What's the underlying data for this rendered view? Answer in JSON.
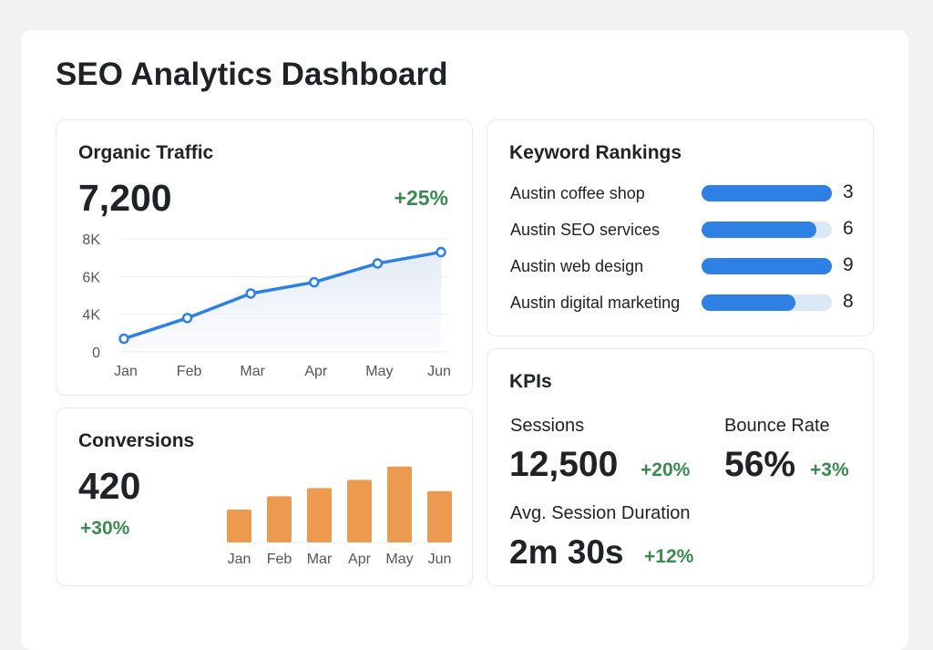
{
  "title": "SEO Analytics Dashboard",
  "organic": {
    "title": "Organic Traffic",
    "value": "7,200",
    "change": "+25%"
  },
  "conversions": {
    "title": "Conversions",
    "value": "420",
    "change": "+30%"
  },
  "keywords": {
    "title": "Keyword Rankings",
    "items": [
      {
        "label": "Austin coffee shop",
        "rank": "3",
        "fill": 1.0
      },
      {
        "label": "Austin SEO services",
        "rank": "6",
        "fill": 0.88
      },
      {
        "label": "Austin web design",
        "rank": "9",
        "fill": 1.0
      },
      {
        "label": "Austin digital marketing",
        "rank": "8",
        "fill": 0.72
      }
    ]
  },
  "kpis": {
    "title": "KPIs",
    "sessions": {
      "label": "Sessions",
      "value": "12,500",
      "change": "+20%"
    },
    "bounce": {
      "label": "Bounce Rate",
      "value": "56%",
      "change": "+3%"
    },
    "duration": {
      "label": "Avg. Session Duration",
      "value": "2m 30s",
      "change": "+12%"
    }
  },
  "colors": {
    "line": "#2f80e4",
    "bar": "#eb9a50",
    "positive": "#3a8a4f",
    "keyword_bar": "#2f80e4",
    "keyword_track": "#dbe8f8"
  },
  "chart_data": [
    {
      "type": "line",
      "categories": [
        "Jan",
        "Feb",
        "Mar",
        "Apr",
        "May",
        "Jun"
      ],
      "values": [
        1400,
        3600,
        5100,
        5700,
        6700,
        7300
      ],
      "yticks": [
        {
          "value": 0,
          "label": "0"
        },
        {
          "value": 4000,
          "label": "4K"
        },
        {
          "value": 6000,
          "label": "6K"
        },
        {
          "value": 8000,
          "label": "8K"
        }
      ],
      "grid": true,
      "area_fill": true
    },
    {
      "type": "bar",
      "categories": [
        "Jan",
        "Feb",
        "Mar",
        "Apr",
        "May",
        "Jun"
      ],
      "values": [
        32,
        45,
        53,
        61,
        74,
        50
      ],
      "ylim": [
        0,
        80
      ],
      "axis_labels": false
    }
  ]
}
